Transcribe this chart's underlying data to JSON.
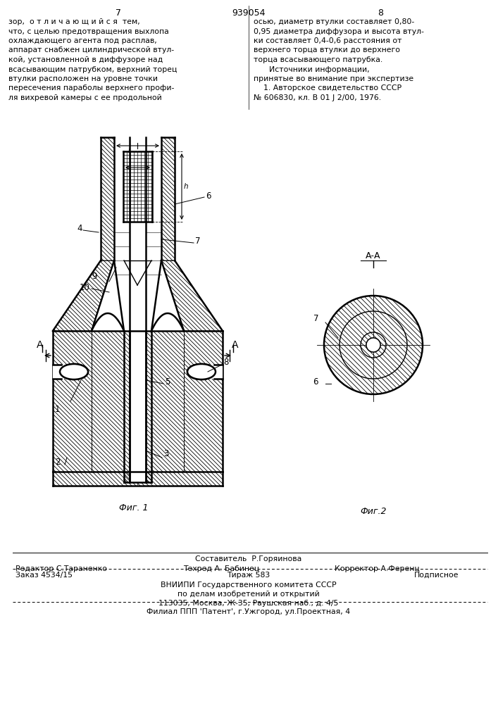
{
  "page_number_left": "7",
  "patent_number": "939054",
  "page_number_right": "8",
  "text_left": "зор,  о т л и ч а ю щ и й с я  тем,\nчто, с целью предотвращения выхлопа\nохлаждающего агента под расплав,\nаппарат снабжен цилиндрической втул-\nкой, установленной в диффузоре над\nвсасывающим патрубком, верхний торец\nвтулки расположен на уровне точки\nпересечения параболы верхнего профи-\nля вихревой камеры с ее продольной",
  "text_right": "осью, диаметр втулки составляет 0,80-\n0,95 диаметра диффузора и высота втул-\nки составляет 0,4-0,6 расстояния от\nверхнего торца втулки до верхнего\nторца всасывающего патрубка.\n    Источники информации,\nпринятые во внимание при экспертизе\n    1. Авторское свидетельство СССР\n№ 606830, кл. В 01 J 2/00, 1976.",
  "fig1_caption": "Фиг. 1",
  "fig2_caption": "Фиг.2",
  "fig2_label_AA": "А-А",
  "footer_line1": "Составитель  Р.Горяинова",
  "footer_editor": "Редактор С.Тараненко",
  "footer_techred": "Техред А. Бабинец",
  "footer_corrector": "Корректор А.Ференц",
  "footer_order": "Заказ 4534/15",
  "footer_tirazh": "Тираж 583",
  "footer_podpisnoe": "Подписное",
  "footer_vniiipi": "ВНИИПИ Государственного комитета СССР",
  "footer_delo": "по делам изобретений и открытий",
  "footer_address": "113035, Москва, Ж-35, Раушская наб., д. 4/5",
  "footer_filial": "Филиал ППП 'Патент', г.Ужгород, ул.Проектная, 4",
  "bg_color": "#ffffff",
  "line_color": "#000000"
}
